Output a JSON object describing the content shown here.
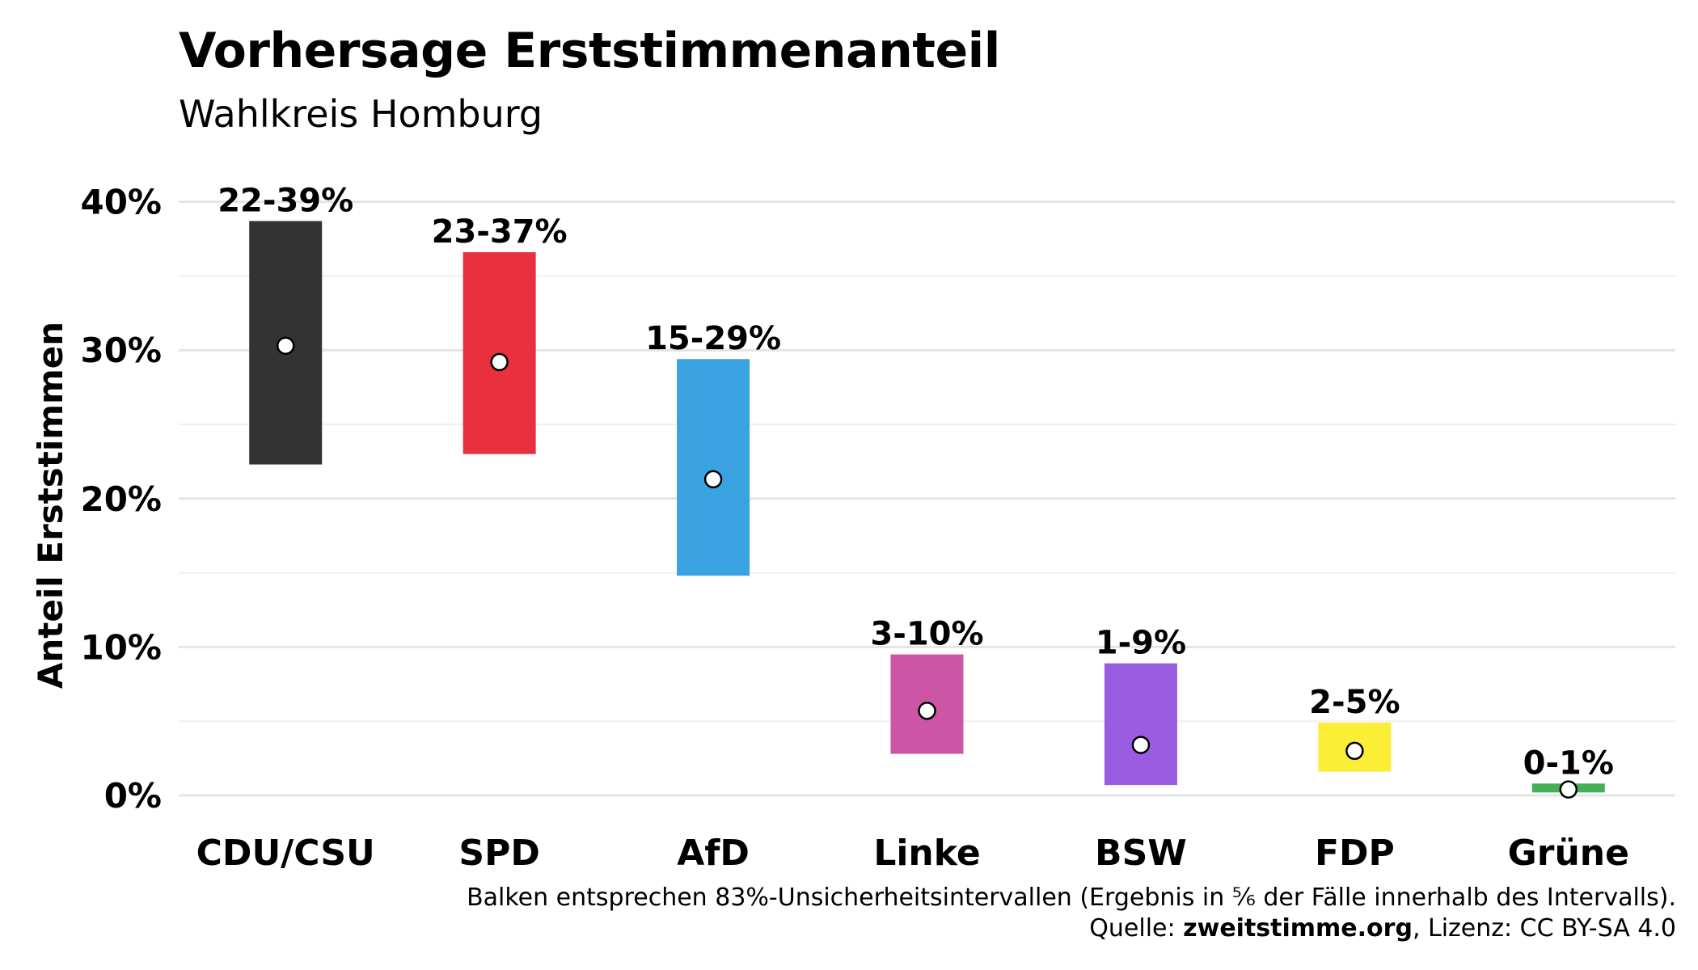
{
  "title": "Vorhersage Erststimmenanteil",
  "subtitle": "Wahlkreis Homburg",
  "caption": {
    "line1": "Balken entsprechen 83%-Unsicherheitsintervallen (Ergebnis in ⅚ der Fälle innerhalb des Intervalls).",
    "source_prefix": "Quelle: ",
    "source_site": "zweitstimme.org",
    "license": ", Lizenz: CC BY-SA 4.0"
  },
  "chart_data": {
    "type": "bar",
    "subtype": "range-interval with point estimate",
    "title": "Vorhersage Erststimmenanteil",
    "subtitle": "Wahlkreis Homburg",
    "ylabel": "Anteil Erststimmen",
    "xlabel": "",
    "ylim": [
      -2,
      45
    ],
    "yticks": [
      0,
      10,
      20,
      30,
      40
    ],
    "ytick_labels": [
      "0%",
      "10%",
      "20%",
      "30%",
      "40%"
    ],
    "grid": true,
    "legend": "none",
    "categories": [
      "CDU/CSU",
      "SPD",
      "AfD",
      "Linke",
      "BSW",
      "FDP",
      "Grüne"
    ],
    "low": [
      22.3,
      23.0,
      14.8,
      2.8,
      0.7,
      1.6,
      0.2
    ],
    "high": [
      38.7,
      36.6,
      29.4,
      9.5,
      8.9,
      4.9,
      0.8
    ],
    "point": [
      30.3,
      29.2,
      21.3,
      5.7,
      3.4,
      3.0,
      0.4
    ],
    "range_labels": [
      "22-39%",
      "23-37%",
      "15-29%",
      "3-10%",
      "1-9%",
      "2-5%",
      "0-1%"
    ],
    "colors": [
      "#333333",
      "#E8303F",
      "#3BA2E2",
      "#CC55A6",
      "#9A5DE2",
      "#FAEE36",
      "#46B058"
    ]
  }
}
